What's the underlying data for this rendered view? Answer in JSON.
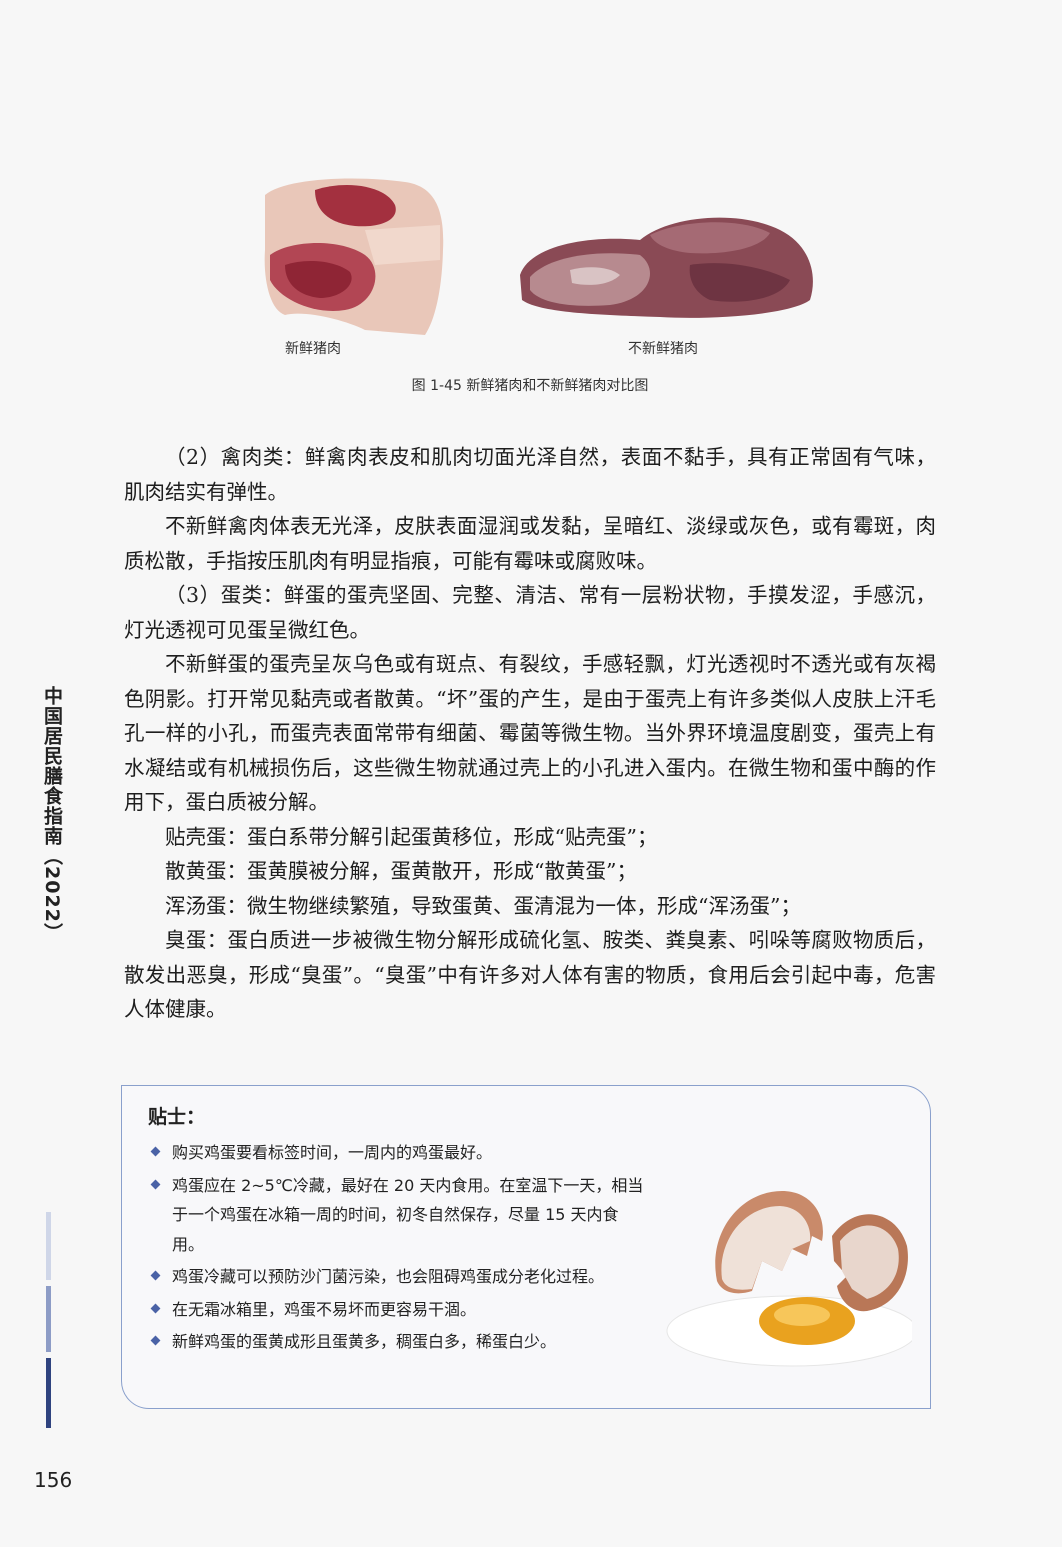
{
  "figure": {
    "caption_fresh": "新鲜猪肉",
    "caption_stale": "不新鲜猪肉",
    "title": "图 1-45 新鲜猪肉和不新鲜猪肉对比图"
  },
  "side_title": "中国居民膳食指南（2022）",
  "body": {
    "paragraphs": [
      "（2）禽肉类：鲜禽肉表皮和肌肉切面光泽自然，表面不黏手，具有正常固有气味，肌肉结实有弹性。",
      "不新鲜禽肉体表无光泽，皮肤表面湿润或发黏，呈暗红、淡绿或灰色，或有霉斑，肉质松散，手指按压肌肉有明显指痕，可能有霉味或腐败味。",
      "（3）蛋类：鲜蛋的蛋壳坚固、完整、清洁、常有一层粉状物，手摸发涩，手感沉，灯光透视可见蛋呈微红色。",
      "不新鲜蛋的蛋壳呈灰乌色或有斑点、有裂纹，手感轻飘，灯光透视时不透光或有灰褐色阴影。打开常见黏壳或者散黄。“坏”蛋的产生，是由于蛋壳上有许多类似人皮肤上汗毛孔一样的小孔，而蛋壳表面常带有细菌、霉菌等微生物。当外界环境温度剧变，蛋壳上有水凝结或有机械损伤后，这些微生物就通过壳上的小孔进入蛋内。在微生物和蛋中酶的作用下，蛋白质被分解。",
      "贴壳蛋：蛋白系带分解引起蛋黄移位，形成“贴壳蛋”；",
      "散黄蛋：蛋黄膜被分解，蛋黄散开，形成“散黄蛋”；",
      "浑汤蛋：微生物继续繁殖，导致蛋黄、蛋清混为一体，形成“浑汤蛋”；",
      "臭蛋：蛋白质进一步被微生物分解形成硫化氢、胺类、粪臭素、吲哚等腐败物质后，散发出恶臭，形成“臭蛋”。“臭蛋”中有许多对人体有害的物质，食用后会引起中毒，危害人体健康。"
    ]
  },
  "tip": {
    "title": "贴士：",
    "items": [
      "购买鸡蛋要看标签时间，一周内的鸡蛋最好。",
      "鸡蛋应在 2~5℃冷藏，最好在 20 天内食用。在室温下一天，相当于一个鸡蛋在冰箱一周的时间，初冬自然保存，尽量 15 天内食用。",
      "鸡蛋冷藏可以预防沙门菌污染，也会阻碍鸡蛋成分老化过程。",
      "在无霜冰箱里，鸡蛋不易坏而更容易干涸。",
      "新鲜鸡蛋的蛋黄成形且蛋黄多，稠蛋白多，稀蛋白少。"
    ]
  },
  "page_number": "156"
}
